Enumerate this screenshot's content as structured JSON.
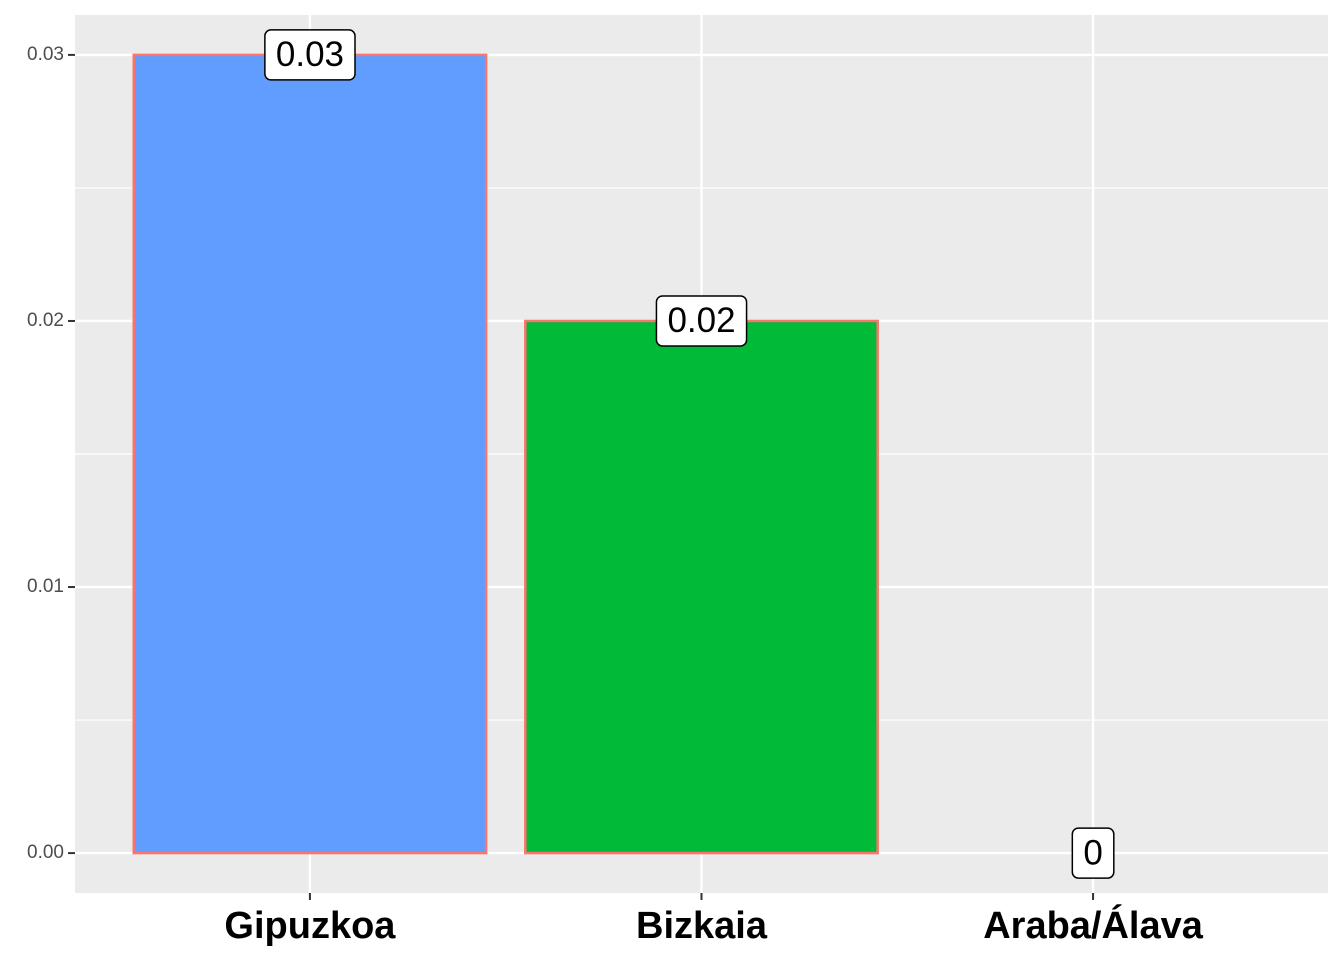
{
  "chart_data": {
    "type": "bar",
    "categories": [
      "Gipuzkoa",
      "Bizkaia",
      "Araba/Álava"
    ],
    "values": [
      0.03,
      0.02,
      0
    ],
    "value_labels": [
      "0.03",
      "0.02",
      "0"
    ],
    "colors": [
      "#619CFF",
      "#00BA38",
      "#F8766D"
    ],
    "outline_color": "#F8766D",
    "ylim": [
      -0.0015,
      0.0315
    ],
    "yticks": [
      {
        "value": 0,
        "label": "0.00"
      },
      {
        "value": 0.01,
        "label": "0.01"
      },
      {
        "value": 0.02,
        "label": "0.02"
      },
      {
        "value": 0.03,
        "label": "0.03"
      }
    ],
    "minor_yticks": [
      0.005,
      0.015,
      0.025
    ],
    "grid": true
  }
}
